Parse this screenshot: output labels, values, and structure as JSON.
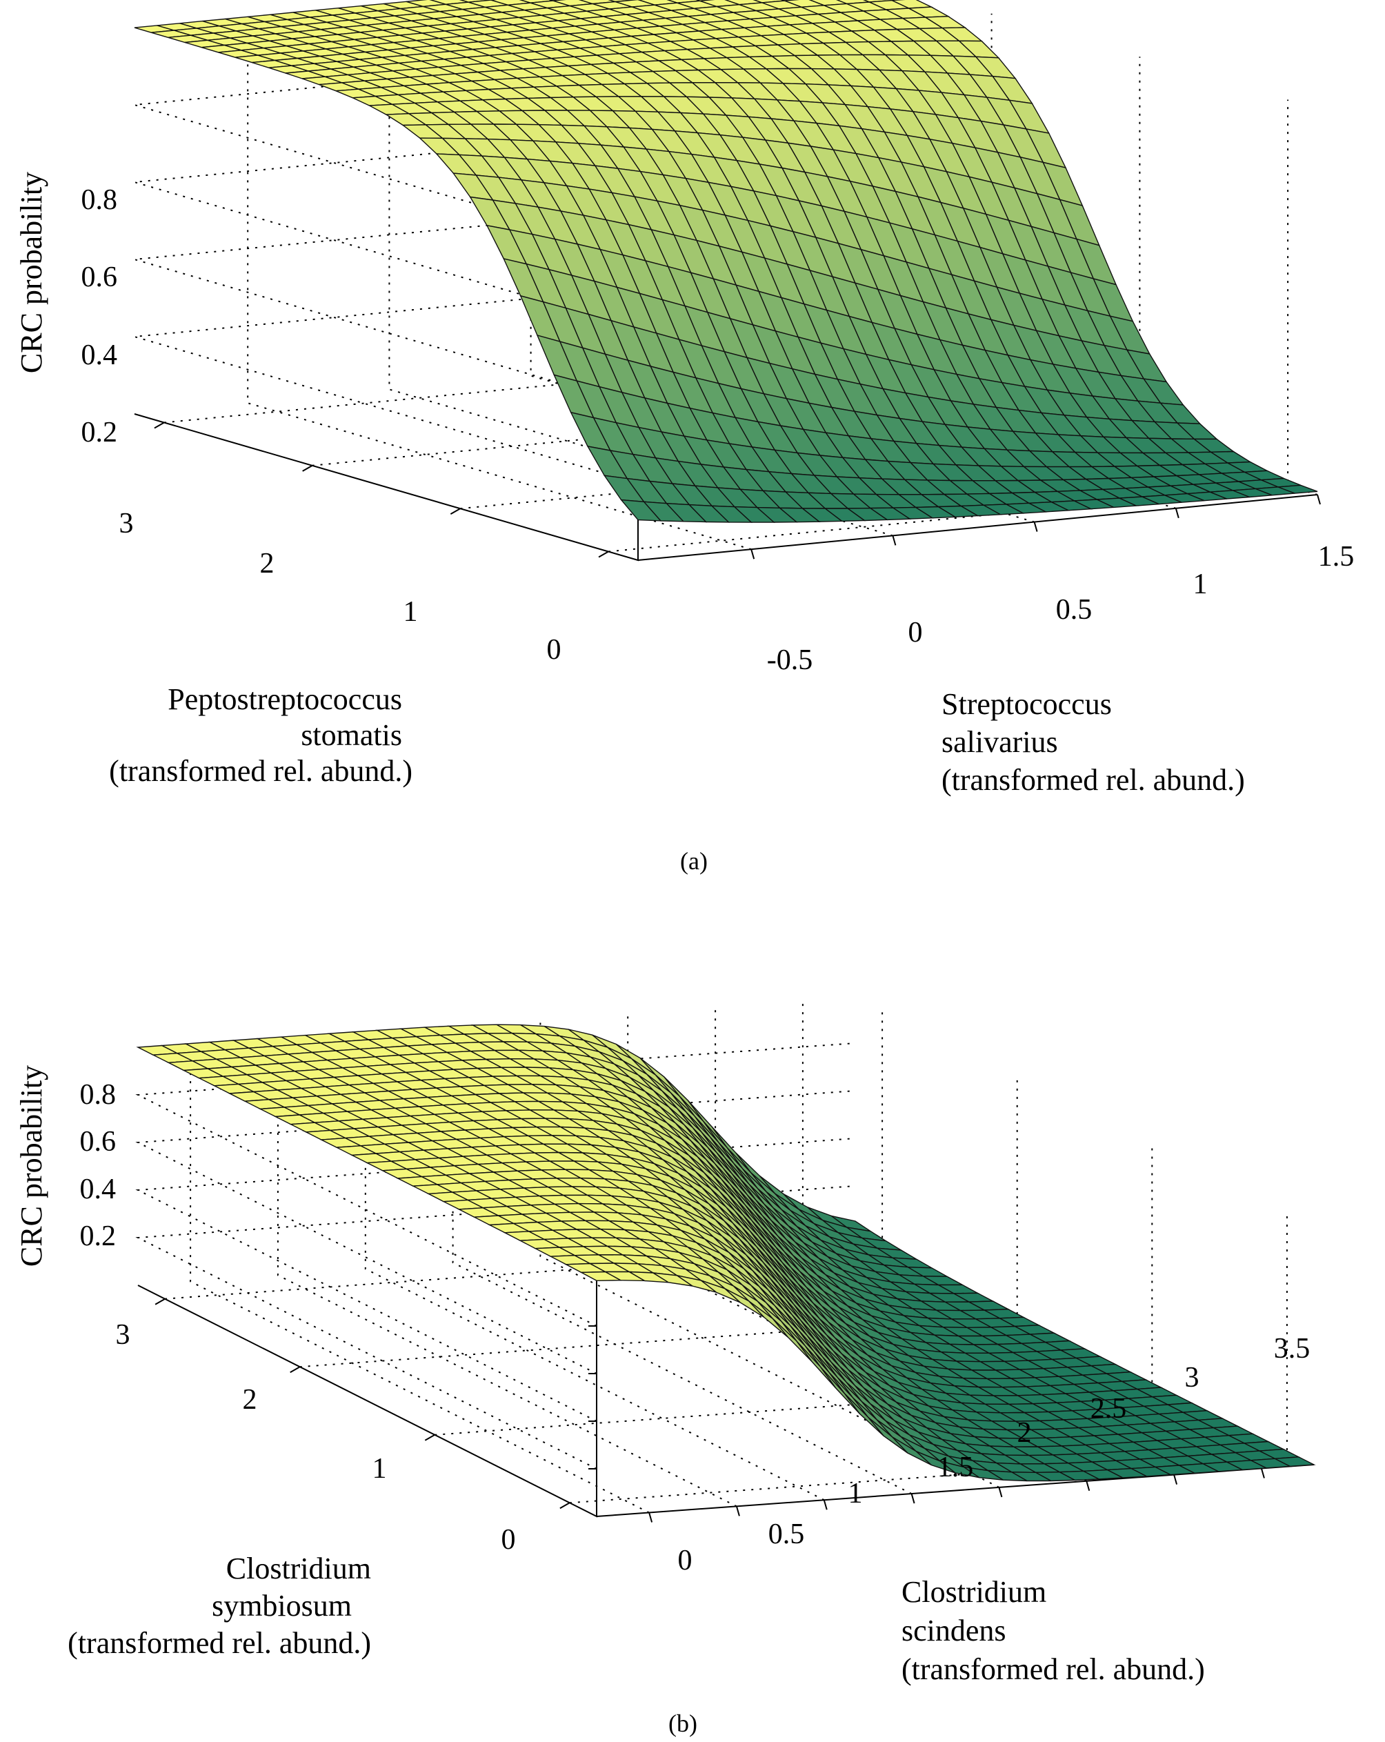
{
  "chart_data": [
    {
      "type": "surface",
      "panel_label": "(a)",
      "zlabel": "CRC probability",
      "xlabel_lines": [
        "Peptostreptococcus",
        "stomatis",
        "(transformed rel. abund.)"
      ],
      "ylabel_lines": [
        "Streptococcus",
        "salivarius",
        "(transformed rel. abund.)"
      ],
      "x_ticks": [
        "0",
        "1",
        "2",
        "3"
      ],
      "y_ticks": [
        "-0.5",
        "0",
        "0.5",
        "1",
        "1.5"
      ],
      "z_ticks": [
        "0.2",
        "0.4",
        "0.6",
        "0.8"
      ],
      "xlim": [
        -0.2,
        3.2
      ],
      "ylim": [
        -0.9,
        1.5
      ],
      "zlim": [
        0,
        1
      ],
      "surface": "logistic",
      "coef": {
        "b0": -2.5,
        "bx": 3.2,
        "by": -1.1
      },
      "grid_n": 30,
      "colormap": [
        "#1e7a5e",
        "#f4f77a"
      ]
    },
    {
      "type": "surface",
      "panel_label": "(b)",
      "zlabel": "CRC probability",
      "xlabel_lines": [
        "Clostridium",
        "symbiosum",
        "(transformed rel. abund.)"
      ],
      "ylabel_lines": [
        "Clostridium",
        "scindens",
        "(transformed rel. abund.)"
      ],
      "x_ticks": [
        "0",
        "1",
        "2",
        "3"
      ],
      "y_ticks": [
        "0",
        "0.5",
        "1",
        "1.5",
        "2",
        "2.5",
        "3",
        "3.5"
      ],
      "z_ticks": [
        "0.2",
        "0.4",
        "0.6",
        "0.8"
      ],
      "xlim": [
        -0.2,
        3.2
      ],
      "ylim": [
        -0.3,
        3.8
      ],
      "zlim": [
        0,
        1
      ],
      "surface": "logistic",
      "coef": {
        "b0": 4.0,
        "bx": 2.0,
        "by": -3.5
      },
      "grid_n": 30,
      "colormap": [
        "#1e7a5e",
        "#f4f77a"
      ]
    }
  ]
}
